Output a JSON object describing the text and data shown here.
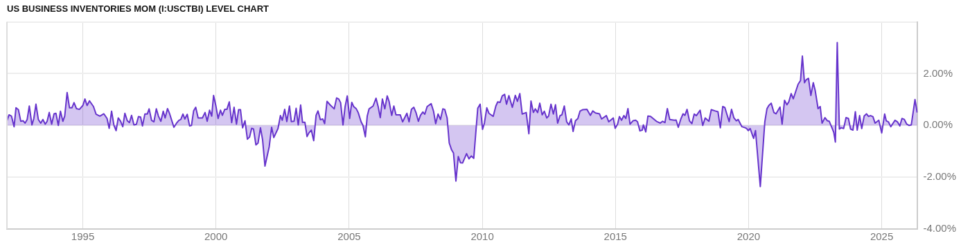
{
  "chart_data": {
    "type": "area",
    "title": "US BUSINESS INVENTORIES MOM (I:USCTBI) LEVEL CHART",
    "xlim": [
      1992.15,
      2026.35
    ],
    "xticks": [
      1995,
      2000,
      2005,
      2010,
      2015,
      2020,
      2025
    ],
    "ylim": [
      -4,
      4
    ],
    "yticks": [
      {
        "value": -4,
        "label": "-4.00%"
      },
      {
        "value": -2,
        "label": "-2.00%"
      },
      {
        "value": 0,
        "label": "0.00%"
      },
      {
        "value": 2,
        "label": "2.00%"
      },
      {
        "value": 4,
        "label": null
      }
    ],
    "grid": true,
    "legend": false,
    "marker": "none",
    "line_style": "solid",
    "series": [
      {
        "color": "#6633cc",
        "x": [
          1992.15,
          1992.23,
          1992.32,
          1992.42,
          1992.49,
          1992.58,
          1992.67,
          1992.76,
          1992.83,
          1992.91,
          1992.99,
          1993.09,
          1993.16,
          1993.24,
          1993.33,
          1993.42,
          1993.5,
          1993.59,
          1993.66,
          1993.74,
          1993.83,
          1993.92,
          1993.99,
          1994.08,
          1994.16,
          1994.25,
          1994.32,
          1994.41,
          1994.5,
          1994.59,
          1994.67,
          1994.76,
          1994.87,
          1995.0,
          1995.08,
          1995.16,
          1995.25,
          1995.4,
          1995.5,
          1995.64,
          1995.79,
          1995.91,
          1995.99,
          1996.08,
          1996.17,
          1996.25,
          1996.33,
          1996.42,
          1996.5,
          1996.58,
          1996.67,
          1996.75,
          1996.83,
          1996.92,
          1997.01,
          1997.09,
          1997.17,
          1997.24,
          1997.33,
          1997.42,
          1997.49,
          1997.58,
          1997.67,
          1997.76,
          1997.84,
          1997.93,
          1998.02,
          1998.09,
          1998.18,
          1998.26,
          1998.42,
          1998.52,
          1998.61,
          1998.68,
          1998.76,
          1998.83,
          1998.92,
          1999.01,
          1999.08,
          1999.16,
          1999.24,
          1999.33,
          1999.49,
          1999.59,
          1999.67,
          1999.76,
          1999.84,
          1999.91,
          1999.99,
          2000.08,
          2000.17,
          2000.24,
          2000.33,
          2000.41,
          2000.5,
          2000.59,
          2000.68,
          2000.77,
          2000.85,
          2000.92,
          2001.0,
          2001.09,
          2001.18,
          2001.26,
          2001.34,
          2001.41,
          2001.5,
          2001.58,
          2001.67,
          2001.75,
          2001.84,
          2002.0,
          2002.09,
          2002.17,
          2002.33,
          2002.42,
          2002.49,
          2002.58,
          2002.66,
          2002.76,
          2002.83,
          2002.93,
          2003.01,
          2003.09,
          2003.18,
          2003.25,
          2003.34,
          2003.42,
          2003.49,
          2003.58,
          2003.67,
          2003.76,
          2003.83,
          2003.92,
          2004.01,
          2004.08,
          2004.17,
          2004.29,
          2004.44,
          2004.53,
          2004.61,
          2004.68,
          2004.77,
          2004.85,
          2004.93,
          2005.02,
          2005.1,
          2005.17,
          2005.27,
          2005.34,
          2005.45,
          2005.52,
          2005.61,
          2005.68,
          2005.75,
          2005.9,
          2006.01,
          2006.09,
          2006.17,
          2006.25,
          2006.34,
          2006.43,
          2006.5,
          2006.6,
          2006.68,
          2006.76,
          2006.92,
          2007.01,
          2007.17,
          2007.25,
          2007.34,
          2007.43,
          2007.51,
          2007.6,
          2007.68,
          2007.77,
          2007.84,
          2007.93,
          2008.08,
          2008.17,
          2008.25,
          2008.34,
          2008.43,
          2008.52,
          2008.59,
          2008.68,
          2008.76,
          2008.85,
          2008.92,
          2009.01,
          2009.1,
          2009.18,
          2009.26,
          2009.41,
          2009.5,
          2009.59,
          2009.68,
          2009.83,
          2009.92,
          2010.01,
          2010.08,
          2010.17,
          2010.25,
          2010.41,
          2010.51,
          2010.58,
          2010.67,
          2010.75,
          2010.84,
          2010.91,
          2011.0,
          2011.13,
          2011.24,
          2011.32,
          2011.41,
          2011.5,
          2011.65,
          2011.75,
          2011.83,
          2011.92,
          2011.99,
          2012.08,
          2012.16,
          2012.25,
          2012.33,
          2012.42,
          2012.49,
          2012.58,
          2012.67,
          2012.75,
          2012.83,
          2012.92,
          2012.99,
          2013.08,
          2013.17,
          2013.25,
          2013.34,
          2013.41,
          2013.5,
          2013.59,
          2013.67,
          2013.78,
          2013.93,
          2014.06,
          2014.15,
          2014.25,
          2014.4,
          2014.48,
          2014.66,
          2014.75,
          2014.92,
          2014.99,
          2015.08,
          2015.15,
          2015.23,
          2015.32,
          2015.39,
          2015.47,
          2015.55,
          2015.66,
          2015.76,
          2015.83,
          2015.92,
          2016.01,
          2016.05,
          2016.14,
          2016.22,
          2016.32,
          2016.54,
          2016.68,
          2016.77,
          2016.86,
          2016.95,
          2017.04,
          2017.21,
          2017.28,
          2017.36,
          2017.45,
          2017.54,
          2017.61,
          2017.69,
          2017.78,
          2017.87,
          2017.96,
          2018.04,
          2018.18,
          2018.28,
          2018.37,
          2018.51,
          2018.6,
          2018.75,
          2018.85,
          2018.94,
          2019.03,
          2019.11,
          2019.27,
          2019.36,
          2019.45,
          2019.54,
          2019.61,
          2019.75,
          2019.87,
          2019.93,
          2019.99,
          2020.06,
          2020.15,
          2020.19,
          2020.26,
          2020.44,
          2020.61,
          2020.69,
          2020.76,
          2020.85,
          2020.95,
          2021.03,
          2021.18,
          2021.26,
          2021.35,
          2021.44,
          2021.51,
          2021.6,
          2021.68,
          2021.86,
          2021.95,
          2022.02,
          2022.1,
          2022.17,
          2022.25,
          2022.34,
          2022.43,
          2022.5,
          2022.61,
          2022.69,
          2022.76,
          2022.87,
          2022.96,
          2023.03,
          2023.13,
          2023.2,
          2023.26,
          2023.33,
          2023.41,
          2023.48,
          2023.57,
          2023.66,
          2023.75,
          2023.83,
          2023.92,
          2024.01,
          2024.08,
          2024.17,
          2024.25,
          2024.34,
          2024.43,
          2024.5,
          2024.58,
          2024.67,
          2024.75,
          2024.89,
          2025.0,
          2025.11,
          2025.17,
          2025.25,
          2025.34,
          2025.5,
          2025.59,
          2025.68,
          2025.76,
          2025.85,
          2025.94,
          2026.03,
          2026.11,
          2026.25,
          2026.33
        ],
        "values": [
          0.18,
          0.41,
          0.36,
          -0.05,
          0.68,
          0.61,
          0.16,
          0.18,
          0.09,
          0.23,
          0.75,
          0.02,
          0.27,
          0.82,
          0.23,
          0.09,
          0.23,
          0.05,
          0.16,
          0.5,
          0.05,
          0.45,
          0.47,
          0,
          0.55,
          0.16,
          0.36,
          1.27,
          0.68,
          0.68,
          0.88,
          0.65,
          0.62,
          0.77,
          1.02,
          0.77,
          0.95,
          0.73,
          0.43,
          0.36,
          0.45,
          0.27,
          -0.11,
          0.55,
          0,
          -0.2,
          0.29,
          0.16,
          -0.05,
          0.47,
          0.18,
          0.11,
          0.39,
          0.02,
          0.04,
          0.34,
          0.32,
          -0.02,
          0.44,
          0.44,
          0.64,
          0.2,
          0.14,
          0.64,
          0.36,
          0.16,
          0.55,
          0.29,
          0.65,
          0.45,
          -0.07,
          0.09,
          0.2,
          0.23,
          0.44,
          0.25,
          0.43,
          -0.02,
          0,
          0.56,
          0.7,
          0.29,
          0.29,
          0.5,
          0.16,
          0.59,
          0.36,
          1.16,
          0.79,
          0.27,
          0.59,
          0.39,
          0.62,
          0.62,
          0.91,
          0.11,
          0.7,
          0.05,
          0.61,
          0.61,
          -0.09,
          0.18,
          -0.53,
          -0.45,
          -0.11,
          -0.14,
          -0.75,
          -0.68,
          -0.09,
          -0.55,
          -1.57,
          -0.82,
          -0.07,
          -0.47,
          -0.12,
          0.38,
          0.2,
          0.62,
          0.15,
          0.75,
          0.15,
          0.16,
          0.66,
          0.02,
          0.79,
          0.12,
          0.12,
          -0.43,
          -0.29,
          -0.18,
          -0.59,
          0.39,
          0.56,
          0.22,
          0.25,
          0.07,
          0.93,
          0.79,
          0.64,
          1.06,
          1.02,
          0.88,
          0.02,
          0.73,
          1.14,
          0.27,
          0.89,
          0.73,
          0.64,
          0.5,
          0.14,
          0,
          -0.44,
          0.36,
          0.64,
          0.75,
          1.05,
          0.73,
          0.3,
          1.02,
          0.64,
          1.14,
          0.93,
          0.39,
          0.75,
          0.41,
          0.41,
          0.14,
          0.47,
          0.14,
          0.62,
          0.7,
          0.5,
          0.16,
          0.39,
          0.52,
          0.43,
          0.73,
          0.84,
          0.55,
          0.07,
          0.44,
          0.23,
          0.64,
          0.62,
          0.29,
          -0.68,
          -0.95,
          -1.07,
          -2.15,
          -1.2,
          -1.44,
          -1.45,
          -1.09,
          -1.29,
          -1.18,
          -1.27,
          0.66,
          0.82,
          -0.15,
          0.09,
          0.68,
          0.47,
          0.35,
          0.75,
          0.91,
          0.89,
          1.14,
          1.2,
          0.82,
          1.15,
          0.7,
          1.16,
          0.93,
          1.23,
          0.44,
          0.5,
          -0.32,
          0.94,
          0.5,
          0.64,
          0.5,
          0.86,
          0.41,
          0.55,
          0.29,
          0.36,
          0.82,
          0.44,
          0.8,
          0.09,
          0.38,
          0.41,
          0.75,
          0.14,
          0.02,
          0.25,
          -0.23,
          0.18,
          0.27,
          0.55,
          0.61,
          0.62,
          0.39,
          0.56,
          0.48,
          0.45,
          0.25,
          0.38,
          0.14,
          0.29,
          -0.11,
          0.05,
          0.34,
          0.2,
          0.38,
          0.27,
          0.65,
          0.05,
          0.18,
          0.2,
          0.14,
          -0.21,
          -0.18,
          0.02,
          -0.25,
          0.36,
          0.35,
          0.16,
          0.09,
          0.16,
          0.11,
          0.65,
          0.23,
          0.2,
          0.21,
          -0.07,
          0.23,
          0.45,
          0.39,
          0.62,
          0.18,
          0.07,
          0.44,
          0.38,
          0.59,
          0,
          0.29,
          0.16,
          0.61,
          0.56,
          0.53,
          -0.09,
          0.73,
          0.69,
          0.15,
          0.62,
          0.29,
          0.18,
          0.23,
          -0.05,
          -0.09,
          -0.12,
          -0.2,
          -0.12,
          -0.39,
          -0.5,
          -0.2,
          -2.36,
          0.14,
          0.64,
          0.77,
          0.86,
          0.5,
          0.45,
          0.71,
          0.05,
          0.97,
          0.8,
          0.91,
          1.23,
          1.03,
          1.59,
          1.73,
          2.68,
          1.65,
          1.77,
          1.82,
          1.16,
          1.65,
          1.36,
          0.65,
          0.73,
          0.09,
          0.3,
          0.18,
          0.16,
          -0.09,
          -0.27,
          -0.64,
          3.2,
          -0.14,
          -0.09,
          -0.12,
          0.3,
          0.27,
          -0.14,
          -0.18,
          0.53,
          -0.18,
          0.38,
          -0.12,
          0.36,
          0.45,
          0.35,
          0.38,
          0.34,
          0.09,
          0.2,
          -0.29,
          0.44,
          0.18,
          0.14,
          -0.05,
          0.2,
          0.14,
          -0.02,
          0.27,
          0.23,
          0.05,
          0,
          0.02,
          1.0,
          0.5
        ]
      }
    ]
  }
}
